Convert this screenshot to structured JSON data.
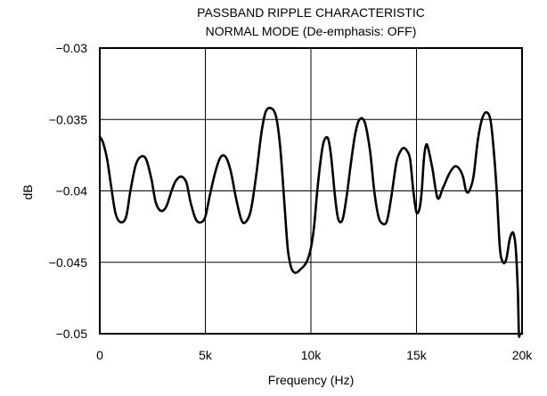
{
  "chart_data": {
    "type": "line",
    "title": "PASSBAND RIPPLE CHARACTERISTIC",
    "subtitle": "NORMAL MODE (De-emphasis: OFF)",
    "xlabel": "Frequency (Hz)",
    "ylabel": "dB",
    "xlim": [
      0,
      20000
    ],
    "ylim": [
      -0.05,
      -0.03
    ],
    "xticks": [
      0,
      5000,
      10000,
      15000,
      20000
    ],
    "xtick_labels": [
      "0",
      "5k",
      "10k",
      "15k",
      "20k"
    ],
    "yticks": [
      -0.03,
      -0.035,
      -0.04,
      -0.045,
      -0.05
    ],
    "ytick_labels": [
      "−0.03",
      "−0.035",
      "−0.04",
      "−0.045",
      "−0.05"
    ],
    "grid": true,
    "line_color": "#000000",
    "series": [
      {
        "x": [
          0,
          150,
          350,
          550,
          750,
          1000,
          1250,
          1450,
          1700,
          1950,
          2200,
          2450,
          2650,
          2900,
          3150,
          3400,
          3600,
          3850,
          4100,
          4300,
          4550,
          4800,
          5000,
          5200,
          5450,
          5700,
          5950,
          6200,
          6450,
          6700,
          6900,
          7150,
          7400,
          7650,
          7850,
          8100,
          8350,
          8550,
          8750,
          8900,
          9050,
          9200,
          9350,
          9500,
          9700,
          9850,
          10000,
          10150,
          10300,
          10450,
          10600,
          10800,
          10950,
          11150,
          11300,
          11500,
          11700,
          11900,
          12100,
          12300,
          12550,
          12800,
          13000,
          13200,
          13400,
          13600,
          13800,
          14050,
          14250,
          14400,
          14550,
          14700,
          14850,
          15000,
          15150,
          15250,
          15350,
          15450,
          15550,
          15750,
          16000,
          16250,
          16550,
          16800,
          17000,
          17200,
          17350,
          17500,
          17700,
          17900,
          18100,
          18300,
          18500,
          18650,
          18800,
          18950,
          19100,
          19250,
          19400,
          19500,
          19600,
          19700,
          19800,
          19850,
          19900,
          19950,
          20000
        ],
        "y": [
          -0.0362,
          -0.0366,
          -0.0378,
          -0.0398,
          -0.0416,
          -0.0422,
          -0.0418,
          -0.04,
          -0.0382,
          -0.0376,
          -0.0378,
          -0.0392,
          -0.0408,
          -0.0414,
          -0.0411,
          -0.04,
          -0.0393,
          -0.039,
          -0.0394,
          -0.0408,
          -0.042,
          -0.0422,
          -0.0418,
          -0.0404,
          -0.0388,
          -0.0377,
          -0.0376,
          -0.0386,
          -0.0405,
          -0.042,
          -0.0422,
          -0.0414,
          -0.039,
          -0.036,
          -0.0345,
          -0.0342,
          -0.0348,
          -0.037,
          -0.041,
          -0.044,
          -0.0453,
          -0.0457,
          -0.0457,
          -0.0455,
          -0.0452,
          -0.0448,
          -0.044,
          -0.0425,
          -0.04,
          -0.038,
          -0.0366,
          -0.0363,
          -0.0375,
          -0.0405,
          -0.042,
          -0.042,
          -0.0403,
          -0.038,
          -0.036,
          -0.035,
          -0.0352,
          -0.0372,
          -0.04,
          -0.0418,
          -0.0423,
          -0.0421,
          -0.0405,
          -0.038,
          -0.0372,
          -0.037,
          -0.0372,
          -0.0378,
          -0.04,
          -0.0415,
          -0.0412,
          -0.04,
          -0.0378,
          -0.0368,
          -0.037,
          -0.0384,
          -0.0405,
          -0.0398,
          -0.0388,
          -0.0383,
          -0.0384,
          -0.039,
          -0.04,
          -0.04,
          -0.039,
          -0.0365,
          -0.035,
          -0.0345,
          -0.035,
          -0.037,
          -0.04,
          -0.044,
          -0.045,
          -0.0448,
          -0.0435,
          -0.043,
          -0.043,
          -0.044,
          -0.047,
          -0.05,
          -0.05,
          -0.05,
          -0.05
        ]
      }
    ]
  }
}
